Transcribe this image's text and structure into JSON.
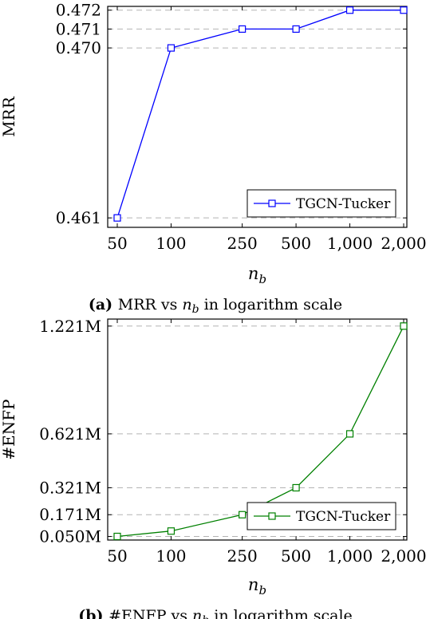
{
  "chart_data": [
    {
      "type": "line",
      "x_scale": "log",
      "x": [
        50,
        100,
        250,
        500,
        1000,
        2000
      ],
      "x_tick_labels": [
        "50",
        "100",
        "250",
        "500",
        "1,000",
        "2,000"
      ],
      "series": [
        {
          "name": "TGCN-Tucker",
          "values": [
            0.461,
            0.47,
            0.471,
            0.471,
            0.472,
            0.472
          ],
          "color": "#0000ff",
          "marker": "square"
        }
      ],
      "y_ticks": [
        0.461,
        0.47,
        0.471,
        0.472
      ],
      "y_tick_labels": [
        "0.461",
        "0.470",
        "0.471",
        "0.472"
      ],
      "xlabel": "n",
      "xlabel_sub": "b",
      "ylabel": "MRR",
      "ylim": [
        0.4605,
        0.4722
      ],
      "grid": "horizontal dashed",
      "legend_position": "bottom-right",
      "caption": {
        "prefix": "(a)",
        "text_before": "MRR vs",
        "var": "n",
        "sub": "b",
        "text_after": "in logarithm scale"
      }
    },
    {
      "type": "line",
      "x_scale": "log",
      "x": [
        50,
        100,
        250,
        500,
        1000,
        2000
      ],
      "x_tick_labels": [
        "50",
        "100",
        "250",
        "500",
        "1,000",
        "2,000"
      ],
      "series": [
        {
          "name": "TGCN-Tucker",
          "values": [
            0.05,
            0.08,
            0.171,
            0.321,
            0.621,
            1.221
          ],
          "color": "#008000",
          "marker": "square"
        }
      ],
      "y_ticks": [
        0.05,
        0.171,
        0.321,
        0.621,
        1.221
      ],
      "y_tick_labels": [
        "0.050M",
        "0.171M",
        "0.321M",
        "0.621M",
        "1.221M"
      ],
      "xlabel": "n",
      "xlabel_sub": "b",
      "ylabel": "#ENFP",
      "ylim": [
        0.03,
        1.26
      ],
      "grid": "horizontal dashed",
      "legend_position": "bottom-right",
      "caption": {
        "prefix": "(b)",
        "text_before": "#ENFP vs",
        "var": "n",
        "sub": "b",
        "text_after": "in logarithm scale"
      }
    }
  ]
}
